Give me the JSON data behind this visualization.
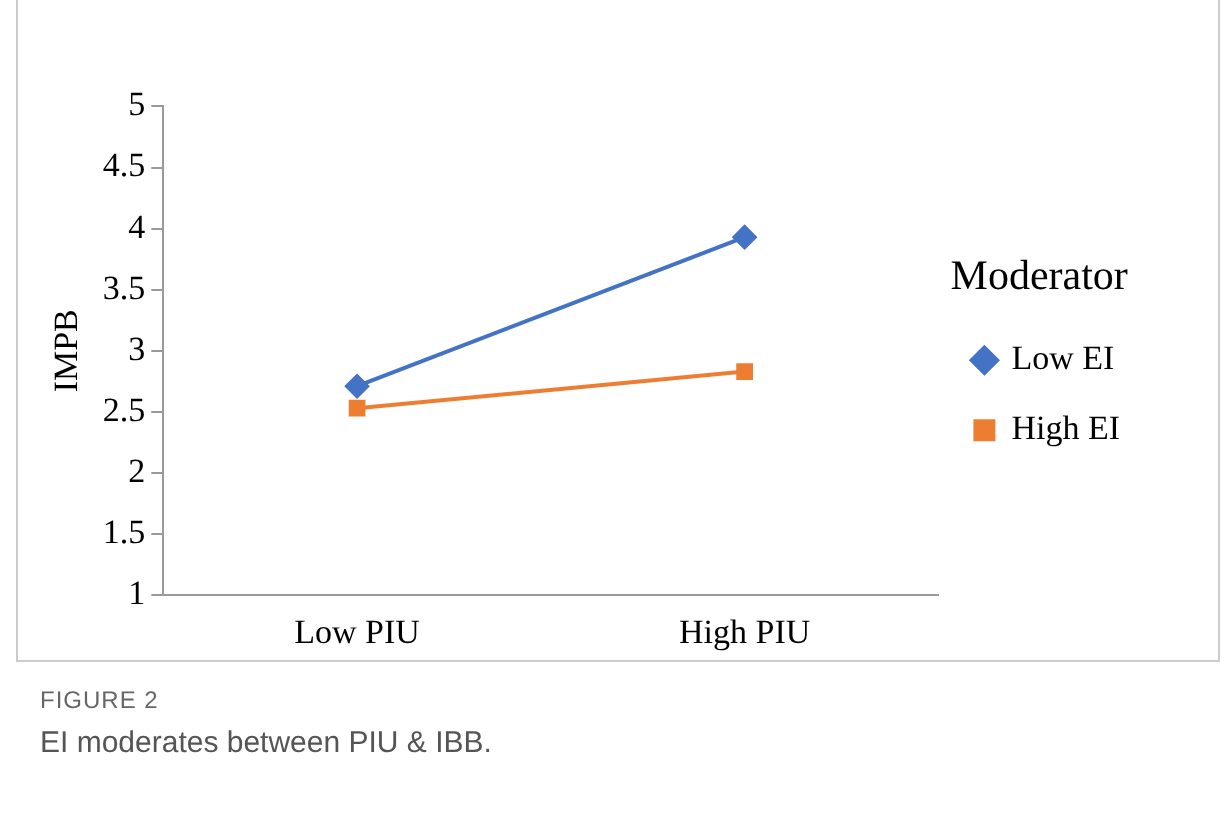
{
  "chart_data": {
    "type": "line",
    "ylabel": "IMPB",
    "legend_title": "Moderator",
    "legend": "right",
    "categories": [
      "Low PIU",
      "High PIU"
    ],
    "series": [
      {
        "name": "Low EI",
        "color": "#4472c4",
        "values": [
          2.71,
          3.93
        ],
        "marker": "diamond"
      },
      {
        "name": "High EI",
        "color": "#ed7d31",
        "values": [
          2.53,
          2.83
        ],
        "marker": "square"
      }
    ],
    "ylim": [
      1,
      5
    ],
    "yticks": [
      1,
      1.5,
      2,
      2.5,
      3,
      3.5,
      4,
      4.5,
      5
    ],
    "grid": false,
    "annotations": [
      "FIGURE 2",
      "EI moderates between PIU & IBB."
    ]
  }
}
